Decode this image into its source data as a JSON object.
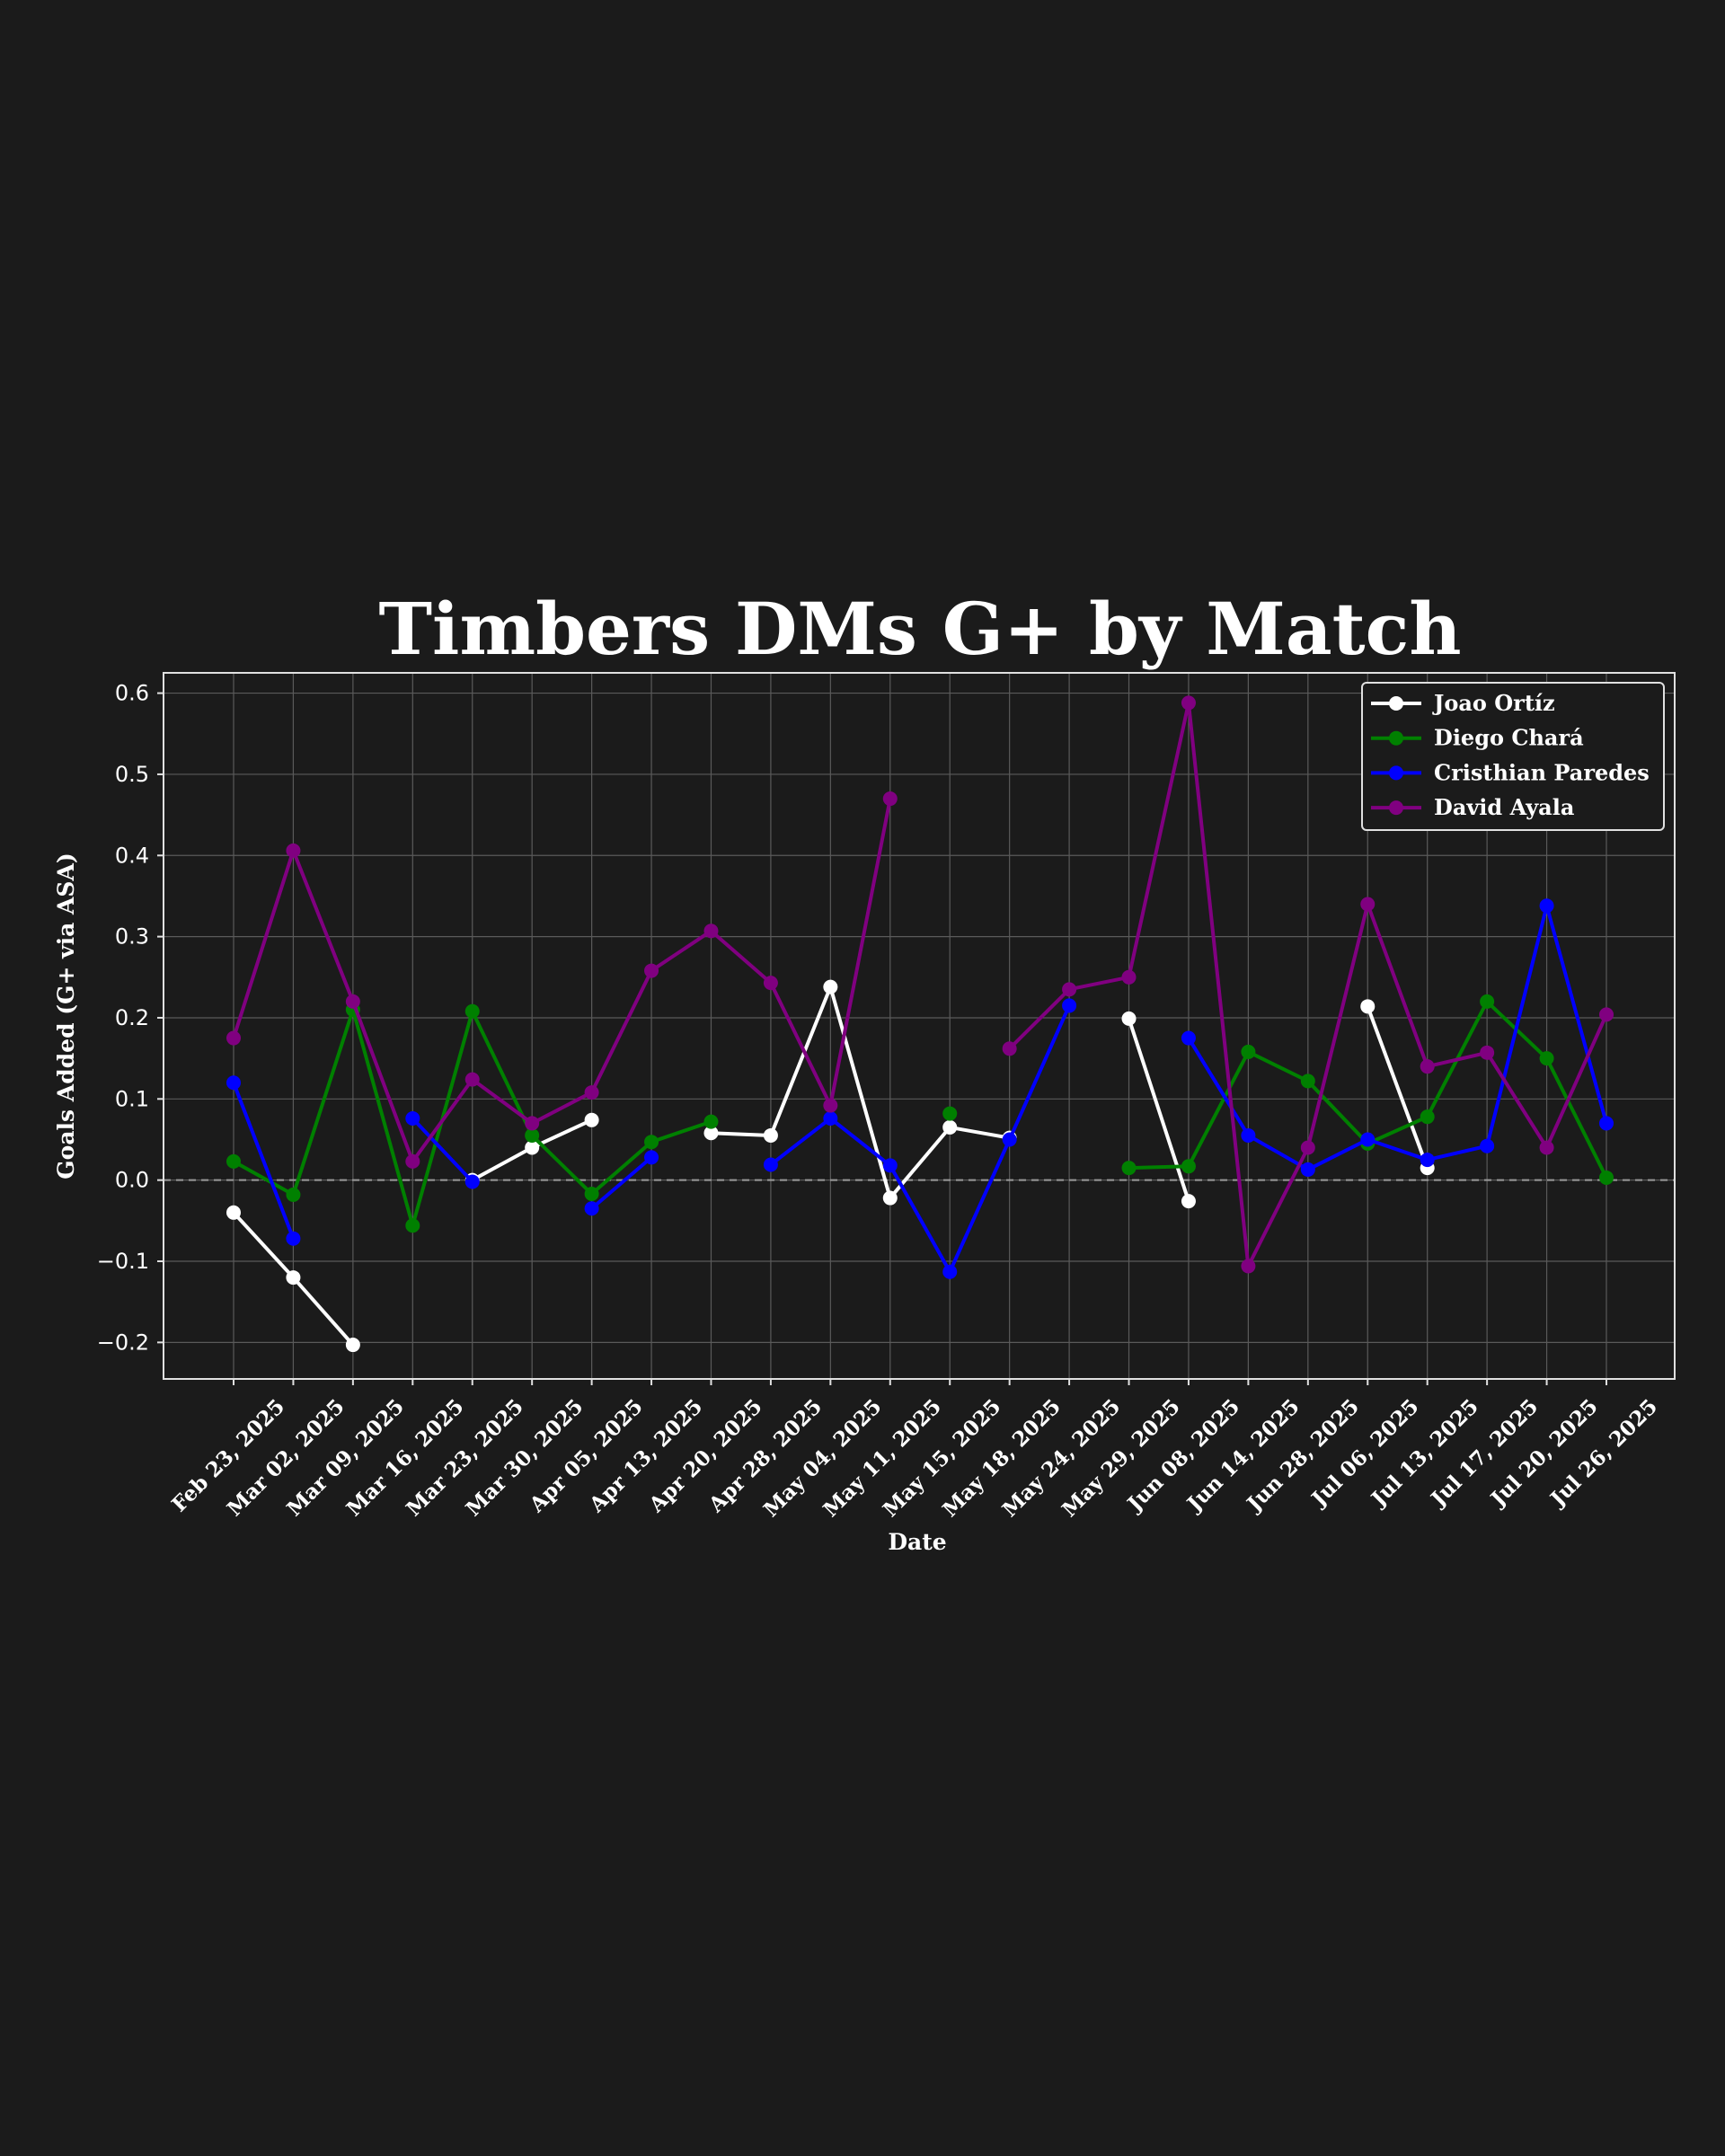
{
  "chart_data": {
    "type": "line",
    "title": "Timbers DMs G+ by Match",
    "xlabel": "Date",
    "ylabel": "Goals Added (G+ via ASA)",
    "ylim": [
      -0.245,
      0.625
    ],
    "yticks": [
      -0.2,
      -0.1,
      0.0,
      0.1,
      0.2,
      0.3,
      0.4,
      0.5,
      0.6
    ],
    "ytick_labels": [
      "−0.2",
      "−0.1",
      "0.0",
      "0.1",
      "0.2",
      "0.3",
      "0.4",
      "0.5",
      "0.6"
    ],
    "zero_line": true,
    "grid": true,
    "legend_position": "top-right",
    "categories": [
      "Feb 23, 2025",
      "Mar 02, 2025",
      "Mar 09, 2025",
      "Mar 16, 2025",
      "Mar 23, 2025",
      "Mar 30, 2025",
      "Apr 05, 2025",
      "Apr 13, 2025",
      "Apr 20, 2025",
      "Apr 28, 2025",
      "May 04, 2025",
      "May 11, 2025",
      "May 15, 2025",
      "May 18, 2025",
      "May 24, 2025",
      "May 29, 2025",
      "Jun 08, 2025",
      "Jun 14, 2025",
      "Jun 28, 2025",
      "Jul 06, 2025",
      "Jul 13, 2025",
      "Jul 17, 2025",
      "Jul 20, 2025",
      "Jul 26, 2025"
    ],
    "series": [
      {
        "name": "Joao Ortíz",
        "color": "#ffffff",
        "values": [
          -0.04,
          -0.12,
          -0.203,
          null,
          0.0,
          0.04,
          0.074,
          null,
          0.058,
          0.055,
          0.238,
          -0.022,
          0.065,
          0.052,
          null,
          0.199,
          -0.026,
          null,
          null,
          0.214,
          0.015,
          null,
          null,
          null
        ]
      },
      {
        "name": "Diego Chará",
        "color": "#008000",
        "values": [
          0.023,
          -0.018,
          0.21,
          -0.056,
          0.208,
          0.055,
          -0.017,
          0.047,
          0.072,
          null,
          null,
          null,
          0.082,
          null,
          null,
          0.015,
          0.017,
          0.158,
          0.122,
          0.045,
          0.078,
          0.22,
          0.15,
          0.003
        ]
      },
      {
        "name": "Cristhian Paredes",
        "color": "#0000ff",
        "values": [
          0.12,
          -0.072,
          null,
          0.076,
          -0.002,
          null,
          -0.035,
          0.028,
          null,
          0.019,
          0.076,
          0.018,
          -0.113,
          0.05,
          0.215,
          null,
          0.175,
          0.055,
          0.013,
          0.05,
          0.025,
          0.042,
          0.338,
          0.07
        ]
      },
      {
        "name": "David Ayala",
        "color": "#800080",
        "values": [
          0.175,
          0.406,
          0.22,
          0.023,
          0.124,
          0.07,
          0.108,
          0.258,
          0.307,
          0.243,
          0.092,
          0.47,
          null,
          0.162,
          0.235,
          0.25,
          0.588,
          -0.106,
          0.04,
          0.34,
          0.14,
          0.157,
          0.04,
          0.204
        ]
      }
    ]
  }
}
